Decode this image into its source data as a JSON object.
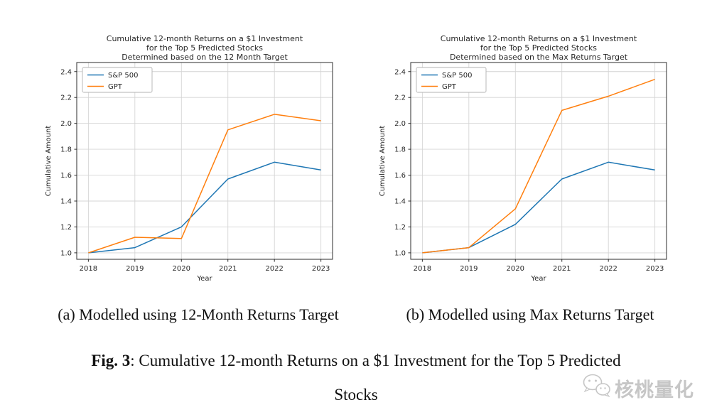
{
  "page": {
    "background": "#ffffff"
  },
  "colors": {
    "sp500": "#1f77b4",
    "gpt": "#ff7f0e",
    "grid": "#d4d4d4",
    "spine": "#2b2b2b",
    "text": "#262626",
    "legend_border": "#b3b3b3",
    "watermark": "#c6c6c6"
  },
  "chart_data": [
    {
      "type": "line",
      "title": "Cumulative 12-month Returns on a $1 Investment\nfor the Top 5 Predicted Stocks\nDetermined based on the 12 Month Target",
      "xlabel": "Year",
      "ylabel": "Cumulative Amount",
      "x": [
        2018,
        2019,
        2020,
        2021,
        2022,
        2023
      ],
      "xticklabels": [
        "2018",
        "2019",
        "2020",
        "2021",
        "2022",
        "2023"
      ],
      "yticks": [
        1.0,
        1.2,
        1.4,
        1.6,
        1.8,
        2.0,
        2.2,
        2.4
      ],
      "ytick_labels": [
        "1.0",
        "1.2",
        "1.4",
        "1.6",
        "1.8",
        "2.0",
        "2.2",
        "2.4"
      ],
      "xlim": [
        2017.75,
        2023.25
      ],
      "ylim": [
        0.95,
        2.47
      ],
      "grid": true,
      "legend_position": "upper left",
      "series": [
        {
          "name": "S&P 500",
          "color": "#1f77b4",
          "values": [
            1.0,
            1.04,
            1.2,
            1.57,
            1.7,
            1.64
          ]
        },
        {
          "name": "GPT",
          "color": "#ff7f0e",
          "values": [
            1.0,
            1.12,
            1.11,
            1.95,
            2.07,
            2.02
          ]
        }
      ]
    },
    {
      "type": "line",
      "title": "Cumulative 12-month Returns on a $1 Investment\nfor the Top 5 Predicted Stocks\nDetermined based on the Max Returns Target",
      "xlabel": "Year",
      "ylabel": "Cumulative Amount",
      "x": [
        2018,
        2019,
        2020,
        2021,
        2022,
        2023
      ],
      "xticklabels": [
        "2018",
        "2019",
        "2020",
        "2021",
        "2022",
        "2023"
      ],
      "yticks": [
        1.0,
        1.2,
        1.4,
        1.6,
        1.8,
        2.0,
        2.2,
        2.4
      ],
      "ytick_labels": [
        "1.0",
        "1.2",
        "1.4",
        "1.6",
        "1.8",
        "2.0",
        "2.2",
        "2.4"
      ],
      "xlim": [
        2017.75,
        2023.25
      ],
      "ylim": [
        0.95,
        2.47
      ],
      "grid": true,
      "legend_position": "upper left",
      "series": [
        {
          "name": "S&P 500",
          "color": "#1f77b4",
          "values": [
            1.0,
            1.04,
            1.22,
            1.57,
            1.7,
            1.64
          ]
        },
        {
          "name": "GPT",
          "color": "#ff7f0e",
          "values": [
            1.0,
            1.04,
            1.34,
            2.1,
            2.21,
            2.34
          ]
        }
      ]
    }
  ],
  "captions": {
    "a": "(a) Modelled using 12-Month Returns Target",
    "b": "(b) Modelled using Max Returns Target"
  },
  "fig_caption": {
    "label": "Fig. 3",
    "rest": ": Cumulative 12-month Returns on a $1 Investment for the Top 5 Predicted",
    "line2": "Stocks"
  },
  "watermark": {
    "text": "核桃量化",
    "icon": "wechat-logo"
  }
}
